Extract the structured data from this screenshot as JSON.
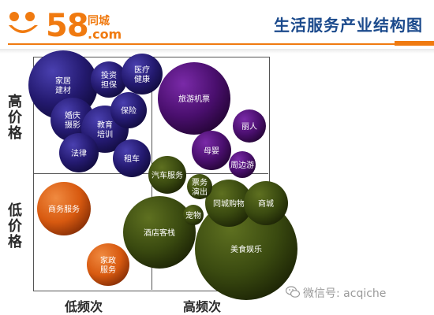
{
  "header": {
    "logo_number": "58",
    "logo_cn": "同城",
    "logo_com": ".com",
    "title": "生活服务产业结构图"
  },
  "axes": {
    "y_high": "高价格",
    "y_low": "低价格",
    "x_low": "低频次",
    "x_high": "高频次"
  },
  "colors": {
    "navy": "#2a1f7a",
    "purple": "#4a0f6e",
    "green": "#3a4a10",
    "orange": "#d85a10",
    "brand": "#f07a10",
    "title": "#1b4a8c"
  },
  "bubbles": [
    {
      "label": [
        "家居",
        "建材"
      ],
      "color": "navy"
    },
    {
      "label": [
        "投资",
        "担保"
      ],
      "color": "navy"
    },
    {
      "label": [
        "医疗",
        "健康"
      ],
      "color": "navy"
    },
    {
      "label": [
        "保险"
      ],
      "color": "navy"
    },
    {
      "label": [
        "婚庆",
        "摄影"
      ],
      "color": "navy"
    },
    {
      "label": [
        "教育",
        "培训"
      ],
      "color": "navy"
    },
    {
      "label": [
        "法律"
      ],
      "color": "navy"
    },
    {
      "label": [
        "租车"
      ],
      "color": "navy"
    },
    {
      "label": [
        "旅游机票"
      ],
      "color": "purple"
    },
    {
      "label": [
        "丽人"
      ],
      "color": "purple"
    },
    {
      "label": [
        "母婴"
      ],
      "color": "purple"
    },
    {
      "label": [
        "周边游"
      ],
      "color": "purple"
    },
    {
      "label": [
        "汽车服务"
      ],
      "color": "green"
    },
    {
      "label": [
        "票务",
        "演出"
      ],
      "color": "green"
    },
    {
      "label": [
        "同城购物"
      ],
      "color": "green"
    },
    {
      "label": [
        "商城"
      ],
      "color": "green"
    },
    {
      "label": [
        "宠物"
      ],
      "color": "green"
    },
    {
      "label": [
        "酒店客栈"
      ],
      "color": "green"
    },
    {
      "label": [
        "美食娱乐"
      ],
      "color": "green"
    },
    {
      "label": [
        "商务服务"
      ],
      "color": "orange"
    },
    {
      "label": [
        "家政",
        "服务"
      ],
      "color": "orange"
    }
  ],
  "watermark": {
    "text": "微信号: acqiche",
    "icon": "wechat-icon"
  }
}
